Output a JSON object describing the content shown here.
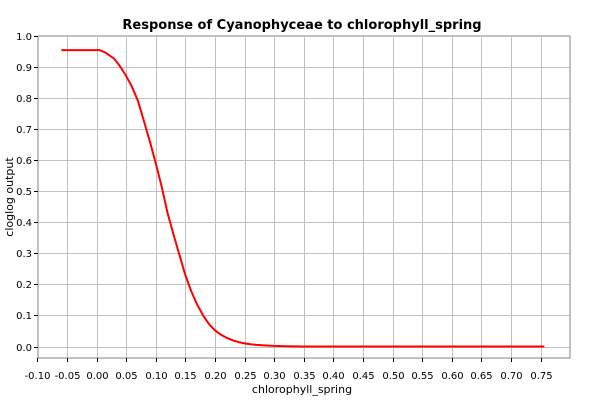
{
  "chart_data": {
    "type": "line",
    "title": "Response of Cyanophyceae to chlorophyll_spring",
    "xlabel": "chlorophyll_spring",
    "ylabel": "cloglog output",
    "xlim": [
      -0.1,
      0.8
    ],
    "ylim": [
      -0.02,
      1.0
    ],
    "x_ticks": [
      -0.1,
      -0.05,
      0.0,
      0.05,
      0.1,
      0.15,
      0.2,
      0.25,
      0.3,
      0.35,
      0.4,
      0.45,
      0.5,
      0.55,
      0.6,
      0.65,
      0.7,
      0.75
    ],
    "x_tick_labels": [
      "-0.10",
      "-0.05",
      "0.00",
      "0.05",
      "0.10",
      "0.15",
      "0.20",
      "0.25",
      "0.30",
      "0.35",
      "0.40",
      "0.45",
      "0.50",
      "0.55",
      "0.60",
      "0.65",
      "0.70",
      "0.75"
    ],
    "y_ticks": [
      0.0,
      0.1,
      0.2,
      0.3,
      0.4,
      0.5,
      0.6,
      0.7,
      0.8,
      0.9,
      1.0
    ],
    "y_tick_labels": [
      "0.0",
      "0.1",
      "0.2",
      "0.3",
      "0.4",
      "0.5",
      "0.6",
      "0.7",
      "0.8",
      "0.9",
      "1.0"
    ],
    "grid": true,
    "series": [
      {
        "color": "#ff0000",
        "x": [
          -0.058,
          0.005,
          0.015,
          0.03,
          0.04,
          0.05,
          0.06,
          0.07,
          0.08,
          0.09,
          0.1,
          0.11,
          0.12,
          0.13,
          0.14,
          0.15,
          0.16,
          0.17,
          0.18,
          0.19,
          0.2,
          0.21,
          0.22,
          0.23,
          0.24,
          0.25,
          0.26,
          0.27,
          0.28,
          0.29,
          0.3,
          0.32,
          0.35,
          0.4,
          0.5,
          0.6,
          0.7,
          0.755
        ],
        "y": [
          0.953,
          0.953,
          0.945,
          0.925,
          0.9,
          0.87,
          0.835,
          0.79,
          0.725,
          0.66,
          0.59,
          0.515,
          0.43,
          0.36,
          0.295,
          0.23,
          0.178,
          0.135,
          0.1,
          0.072,
          0.052,
          0.038,
          0.028,
          0.02,
          0.014,
          0.01,
          0.007,
          0.005,
          0.004,
          0.003,
          0.002,
          0.001,
          0.0,
          0.0,
          0.0,
          0.0,
          0.0,
          0.0
        ]
      }
    ]
  }
}
